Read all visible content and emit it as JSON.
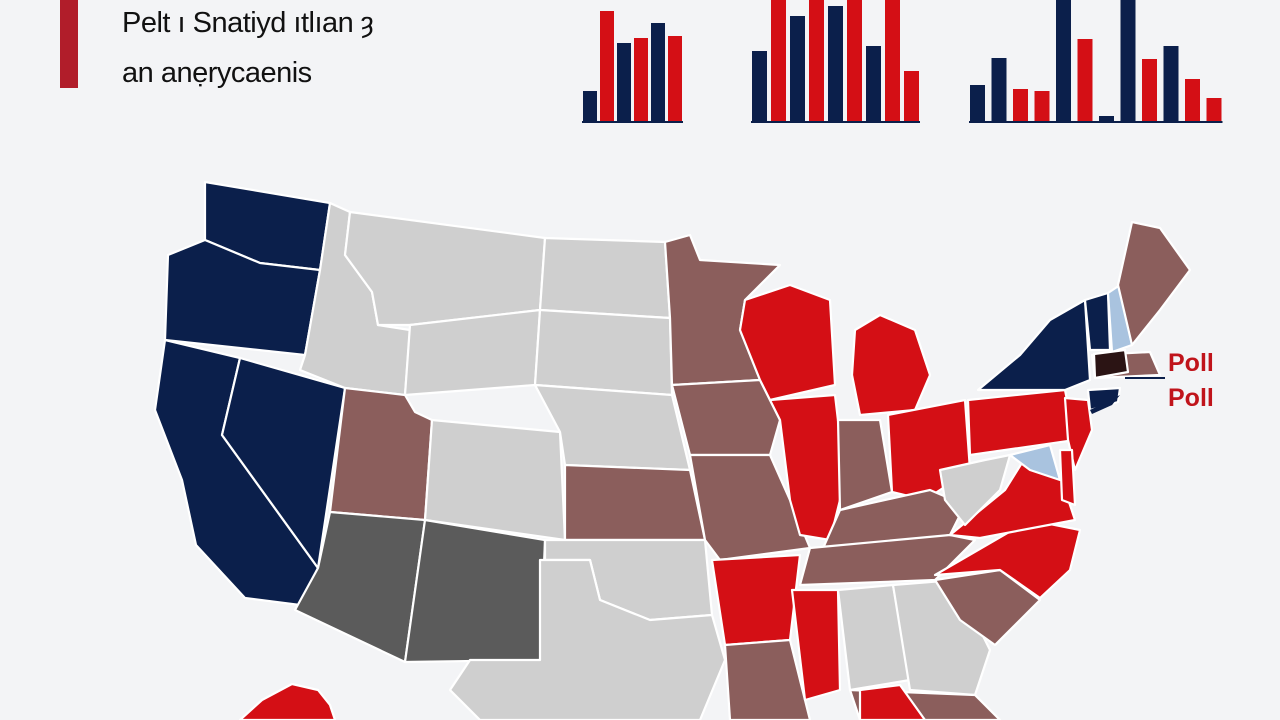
{
  "header": {
    "title_line1": "Pelt ı Snatiyd ıtlıan ȝ",
    "title_line2": "an anẹrycaenis"
  },
  "map_labels": {
    "poll_1": "Poll",
    "poll_2": "Poll"
  },
  "colors": {
    "dem": "#0b1f4b",
    "rep": "#d40f15",
    "lean_rep": "#8b5e5c",
    "tossup": "#cfcfcf",
    "dark_gray": "#5b5b5b",
    "light_blue": "#a9c3df",
    "accent": "#b11d2a",
    "background": "#f3f4f6"
  },
  "bar_groups": [
    {
      "group": "left-1",
      "bars": [
        {
          "party": "dem",
          "value": 30
        },
        {
          "party": "rep",
          "value": 110
        },
        {
          "party": "dem",
          "value": 78
        },
        {
          "party": "rep",
          "value": 83
        },
        {
          "party": "dem",
          "value": 98
        },
        {
          "party": "rep",
          "value": 85
        }
      ]
    },
    {
      "group": "center",
      "bars": [
        {
          "party": "dem",
          "value": 70
        },
        {
          "party": "rep",
          "value": 125
        },
        {
          "party": "dem",
          "value": 105
        },
        {
          "party": "rep",
          "value": 125
        },
        {
          "party": "dem",
          "value": 115
        },
        {
          "party": "rep",
          "value": 125
        },
        {
          "party": "dem",
          "value": 75
        },
        {
          "party": "rep",
          "value": 125
        },
        {
          "party": "rep",
          "value": 50
        }
      ]
    },
    {
      "group": "right",
      "bars": [
        {
          "party": "dem",
          "value": 36
        },
        {
          "party": "dem",
          "value": 63
        },
        {
          "party": "rep",
          "value": 32
        },
        {
          "party": "rep",
          "value": 30
        },
        {
          "party": "dem",
          "value": 125
        },
        {
          "party": "rep",
          "value": 82
        },
        {
          "party": "dem",
          "value": 5
        },
        {
          "party": "dem",
          "value": 125
        },
        {
          "party": "rep",
          "value": 62
        },
        {
          "party": "dem",
          "value": 75
        },
        {
          "party": "rep",
          "value": 42
        },
        {
          "party": "rep",
          "value": 23
        }
      ]
    }
  ],
  "states": [
    {
      "name": "WA",
      "party": "dem"
    },
    {
      "name": "OR",
      "party": "dem"
    },
    {
      "name": "CA",
      "party": "dem"
    },
    {
      "name": "NV",
      "party": "dem"
    },
    {
      "name": "ID",
      "party": "tossup"
    },
    {
      "name": "MT",
      "party": "tossup"
    },
    {
      "name": "WY",
      "party": "tossup"
    },
    {
      "name": "UT",
      "party": "lean_rep"
    },
    {
      "name": "CO",
      "party": "tossup"
    },
    {
      "name": "AZ",
      "party": "dark_gray"
    },
    {
      "name": "NM",
      "party": "dark_gray"
    },
    {
      "name": "ND",
      "party": "tossup"
    },
    {
      "name": "SD",
      "party": "tossup"
    },
    {
      "name": "NE",
      "party": "tossup"
    },
    {
      "name": "KS",
      "party": "lean_rep"
    },
    {
      "name": "OK",
      "party": "tossup"
    },
    {
      "name": "TX",
      "party": "tossup"
    },
    {
      "name": "MN",
      "party": "lean_rep"
    },
    {
      "name": "IA",
      "party": "lean_rep"
    },
    {
      "name": "MO",
      "party": "lean_rep"
    },
    {
      "name": "AR",
      "party": "rep"
    },
    {
      "name": "LA",
      "party": "lean_rep"
    },
    {
      "name": "WI",
      "party": "rep"
    },
    {
      "name": "IL",
      "party": "rep"
    },
    {
      "name": "MI",
      "party": "rep"
    },
    {
      "name": "IN",
      "party": "lean_rep"
    },
    {
      "name": "OH",
      "party": "rep"
    },
    {
      "name": "KY",
      "party": "lean_rep"
    },
    {
      "name": "TN",
      "party": "lean_rep"
    },
    {
      "name": "MS",
      "party": "rep"
    },
    {
      "name": "AL",
      "party": "tossup"
    },
    {
      "name": "GA",
      "party": "tossup"
    },
    {
      "name": "FL",
      "party": "lean_rep"
    },
    {
      "name": "FL-North",
      "party": "rep"
    },
    {
      "name": "SC",
      "party": "lean_rep"
    },
    {
      "name": "NC",
      "party": "rep"
    },
    {
      "name": "VA",
      "party": "rep"
    },
    {
      "name": "WV",
      "party": "tossup"
    },
    {
      "name": "PA",
      "party": "rep"
    },
    {
      "name": "NY",
      "party": "dem"
    },
    {
      "name": "NJ",
      "party": "rep"
    },
    {
      "name": "MD",
      "party": "light_blue"
    },
    {
      "name": "DE",
      "party": "rep"
    },
    {
      "name": "CT",
      "party": "dem"
    },
    {
      "name": "MA",
      "party": "lean_rep"
    },
    {
      "name": "VT",
      "party": "dem"
    },
    {
      "name": "NH",
      "party": "light_blue"
    },
    {
      "name": "ME",
      "party": "lean_rep"
    },
    {
      "name": "HI",
      "party": "rep"
    }
  ]
}
